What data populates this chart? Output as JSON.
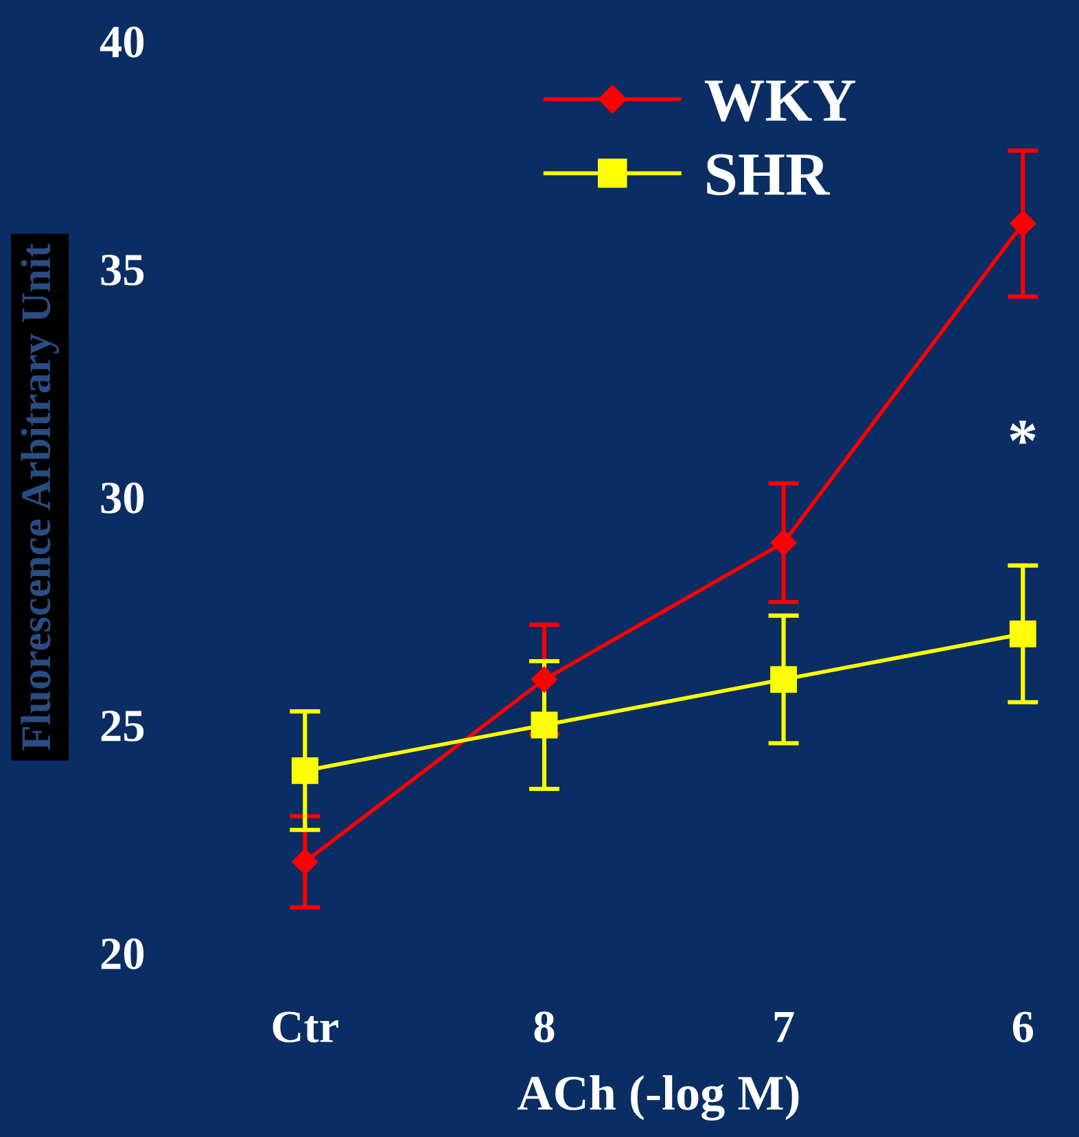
{
  "chart_data": {
    "type": "line",
    "xlabel": "ACh (-log M)",
    "ylabel": "Fluorescence Arbitrary Unit",
    "categories": [
      "Ctr",
      "8",
      "7",
      "6"
    ],
    "series": [
      {
        "name": "WKY",
        "color": "#ff0000",
        "marker": "diamond",
        "values": [
          22,
          26,
          29,
          36
        ],
        "errors": [
          1,
          1.2,
          1.3,
          1.6
        ]
      },
      {
        "name": "SHR",
        "color": "#ffff00",
        "marker": "square",
        "values": [
          24,
          25,
          26,
          27
        ],
        "errors": [
          1.3,
          1.4,
          1.4,
          1.5
        ]
      }
    ],
    "ylim": [
      20,
      40
    ],
    "yticks": [
      20,
      25,
      30,
      35,
      40
    ],
    "legend": "top right",
    "annotations": [
      "*"
    ]
  }
}
